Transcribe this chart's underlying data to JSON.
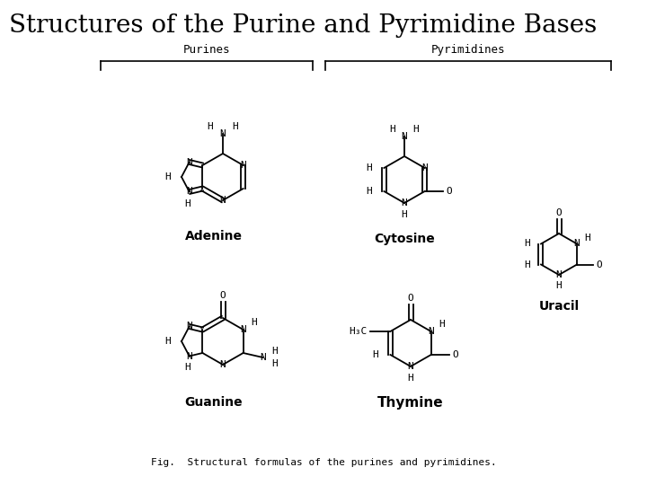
{
  "title": "Structures of the Purine and Pyrimidine Bases",
  "title_fontsize": 20,
  "fig_caption": "Fig.  Structural formulas of the purines and pyrimidines.",
  "bg_color": "#ffffff",
  "purines_label": "Purines",
  "pyrimidines_label": "Pyrimidines",
  "adenine_label": "Adenine",
  "guanine_label": "Guanine",
  "cytosine_label": "Cytosine",
  "thymine_label": "Thymine",
  "uracil_label": "Uracil"
}
